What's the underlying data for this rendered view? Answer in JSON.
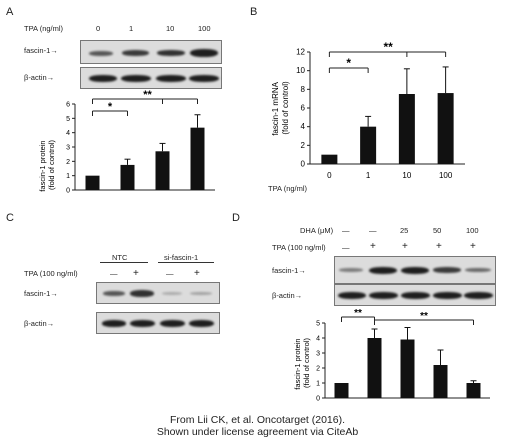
{
  "panels": {
    "a": "A",
    "b": "B",
    "c": "C",
    "d": "D"
  },
  "panel_a": {
    "tpa_label": "TPA (ng/ml)",
    "tpa_values": [
      "0",
      "1",
      "10",
      "100"
    ],
    "blot_labels": [
      "fascin-1",
      "β-actin"
    ],
    "ylabel": "fascin-1 protein\n(fold of control)"
  },
  "panel_b": {
    "ylabel": "fascin-1 mRNA\n(fold of control)",
    "xlabel": "TPA (ng/ml)"
  },
  "panel_c": {
    "group_labels": [
      "NTC",
      "si-fascin-1"
    ],
    "tpa_label": "TPA (100 ng/ml)",
    "tpa_signs": [
      "—",
      "+",
      "—",
      "+"
    ],
    "blot_labels": [
      "fascin-1",
      "β-actin"
    ]
  },
  "panel_d": {
    "dha_label": "DHA (μM)",
    "dha_values": [
      "—",
      "—",
      "25",
      "50",
      "100"
    ],
    "tpa_label": "TPA (100 ng/ml)",
    "tpa_signs": [
      "—",
      "+",
      "+",
      "+",
      "+"
    ],
    "blot_labels": [
      "fascin-1",
      "β-actin"
    ],
    "ylabel": "fascin-1 protein\n(fold of control)"
  },
  "caption": {
    "line1": "From Lii CK, et al. Oncotarget (2016).",
    "line2": "Shown under license agreement via CiteAb"
  },
  "chart_data": [
    {
      "id": "A",
      "type": "bar",
      "categories": [
        "0",
        "1",
        "10",
        "100"
      ],
      "values": [
        1.0,
        1.75,
        2.7,
        4.35
      ],
      "errors": [
        0,
        0.4,
        0.55,
        0.9
      ],
      "ylim": [
        0,
        6
      ],
      "yticks": [
        "0",
        "1",
        "2",
        "3",
        "4",
        "5",
        "6"
      ],
      "significance": [
        {
          "from": 0,
          "to": 1,
          "label": "*"
        },
        {
          "from": 0,
          "to": 3,
          "label": "**",
          "joined": [
            2,
            3
          ]
        }
      ]
    },
    {
      "id": "B",
      "type": "bar",
      "categories": [
        "0",
        "1",
        "10",
        "100"
      ],
      "values": [
        1.0,
        4.0,
        7.5,
        7.6
      ],
      "errors": [
        0,
        1.1,
        2.7,
        2.8
      ],
      "ylim": [
        0,
        12
      ],
      "yticks": [
        "0",
        "2",
        "4",
        "6",
        "8",
        "10",
        "12"
      ],
      "significance": [
        {
          "from": 0,
          "to": 1,
          "label": "*"
        },
        {
          "from": 0,
          "to": 3,
          "label": "**",
          "joined": [
            2,
            3
          ]
        }
      ]
    },
    {
      "id": "D",
      "type": "bar",
      "categories": [
        "1",
        "2",
        "3",
        "4",
        "5"
      ],
      "values": [
        1.0,
        4.0,
        3.9,
        2.2,
        1.0
      ],
      "errors": [
        0,
        0.6,
        0.8,
        1.0,
        0.15
      ],
      "ylim": [
        0,
        5
      ],
      "yticks": [
        "0",
        "1",
        "2",
        "3",
        "4",
        "5"
      ],
      "significance": [
        {
          "from": 0,
          "to": 1,
          "label": "**"
        },
        {
          "from": 1,
          "to": 4,
          "label": "**"
        }
      ]
    }
  ]
}
